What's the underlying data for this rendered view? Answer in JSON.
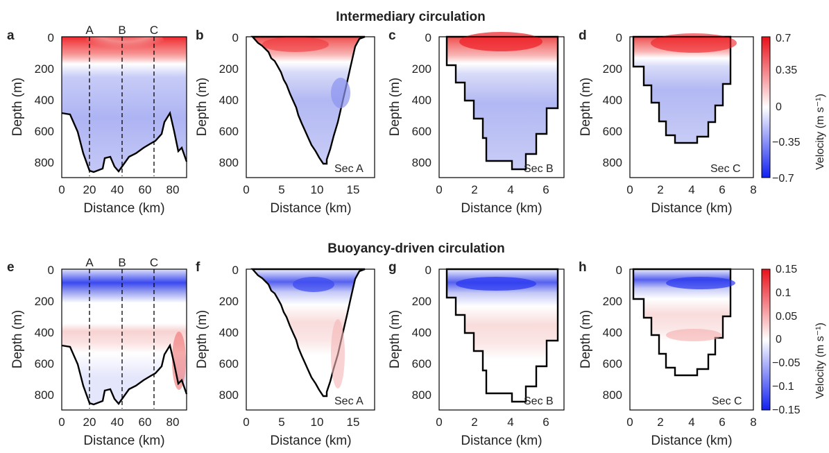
{
  "rows": [
    {
      "title": "Intermediary circulation",
      "colorbar": {
        "label": "Velocity (m s⁻¹)",
        "ticks": [
          "0.7",
          "0.35",
          "0",
          "−0.35",
          "−0.7"
        ]
      },
      "panels": [
        {
          "letter": "a",
          "sec_label": "",
          "section_lines": [
            "A",
            "B",
            "C"
          ]
        },
        {
          "letter": "b",
          "sec_label": "Sec A",
          "section_lines": []
        },
        {
          "letter": "c",
          "sec_label": "Sec B",
          "section_lines": []
        },
        {
          "letter": "d",
          "sec_label": "Sec C",
          "section_lines": []
        }
      ]
    },
    {
      "title": "Buoyancy-driven circulation",
      "colorbar": {
        "label": "Velocity (m s⁻¹)",
        "ticks": [
          "0.15",
          "0.1",
          "0.05",
          "0",
          "−0.05",
          "−0.1",
          "−0.15"
        ]
      },
      "panels": [
        {
          "letter": "e",
          "sec_label": "",
          "section_lines": [
            "A",
            "B",
            "C"
          ]
        },
        {
          "letter": "f",
          "sec_label": "Sec A",
          "section_lines": []
        },
        {
          "letter": "g",
          "sec_label": "Sec B",
          "section_lines": []
        },
        {
          "letter": "h",
          "sec_label": "Sec C",
          "section_lines": []
        }
      ]
    }
  ],
  "chart_data": [
    {
      "type": "heatmap",
      "panel": "a",
      "xlabel": "Distance (km)",
      "ylabel": "Depth (m)",
      "xlim": [
        0,
        90
      ],
      "ylim": [
        900,
        0
      ],
      "xticks": [
        "0",
        "20",
        "40",
        "60",
        "80"
      ],
      "yticks": [
        "0",
        "200",
        "400",
        "600",
        "800"
      ],
      "section_positions_km": {
        "A": 20,
        "B": 41,
        "C": 63
      },
      "bathymetry": {
        "distance_km": [
          0,
          5,
          10,
          15,
          18,
          20,
          25,
          30,
          35,
          40,
          45,
          50,
          55,
          60,
          63,
          65,
          70,
          75,
          80,
          85,
          88
        ],
        "depth_m": [
          490,
          500,
          560,
          680,
          790,
          840,
          860,
          850,
          800,
          850,
          830,
          790,
          760,
          700,
          680,
          650,
          610,
          490,
          640,
          730,
          790
        ]
      }
    },
    {
      "type": "heatmap",
      "panel": "b",
      "section": "A",
      "xlabel": "Distance (km)",
      "ylabel": "Depth (m)",
      "xlim": [
        0,
        18
      ],
      "ylim": [
        900,
        0
      ],
      "xticks": [
        "0",
        "5",
        "10",
        "15"
      ],
      "yticks": [
        "0",
        "200",
        "400",
        "600",
        "800"
      ],
      "bottom_profile": {
        "distance_km": [
          1,
          3,
          5,
          7,
          9,
          10.5,
          11,
          11,
          12,
          14,
          15,
          16.5
        ],
        "depth_m": [
          0,
          100,
          250,
          450,
          650,
          790,
          810,
          700,
          450,
          200,
          80,
          0
        ]
      }
    },
    {
      "type": "heatmap",
      "panel": "c",
      "section": "B",
      "xlabel": "Distance (km)",
      "ylabel": "Depth (m)",
      "xlim": [
        0,
        7
      ],
      "ylim": [
        900,
        0
      ],
      "xticks": [
        "0",
        "2",
        "4",
        "6"
      ],
      "yticks": [
        "0",
        "200",
        "400",
        "600",
        "800"
      ],
      "bottom_profile": {
        "distance_km": [
          0.6,
          0.6,
          1.0,
          1.0,
          1.5,
          1.5,
          2.0,
          2.0,
          2.5,
          2.5,
          2.7,
          2.7,
          3.9,
          3.9,
          4.5,
          4.5,
          5.0,
          5.0,
          5.5,
          5.5,
          6.0,
          6.0
        ],
        "depth_m": [
          0,
          180,
          180,
          290,
          290,
          410,
          410,
          520,
          520,
          640,
          640,
          790,
          790,
          840,
          840,
          750,
          750,
          620,
          620,
          460,
          460,
          0
        ]
      }
    },
    {
      "type": "heatmap",
      "panel": "d",
      "section": "C",
      "xlabel": "Distance (km)",
      "ylabel": "Depth (m)",
      "xlim": [
        0,
        8
      ],
      "ylim": [
        900,
        0
      ],
      "xticks": [
        "0",
        "2",
        "4",
        "6",
        "8"
      ],
      "yticks": [
        "0",
        "200",
        "400",
        "600",
        "800"
      ],
      "bottom_profile": {
        "distance_km": [
          0.6,
          0.6,
          1.3,
          1.3,
          1.8,
          1.8,
          2.3,
          2.3,
          2.8,
          2.8,
          3.4,
          3.4,
          4.8,
          4.8,
          5.5,
          5.5,
          6.0,
          6.0,
          6.5,
          6.5,
          7.0,
          7.0
        ],
        "depth_m": [
          0,
          190,
          190,
          310,
          310,
          420,
          420,
          540,
          540,
          630,
          630,
          680,
          680,
          640,
          640,
          550,
          550,
          440,
          440,
          300,
          300,
          0
        ]
      }
    },
    {
      "type": "heatmap",
      "panel": "e",
      "xlabel": "Distance (km)",
      "ylabel": "Depth (m)",
      "xlim": [
        0,
        90
      ],
      "ylim": [
        900,
        0
      ],
      "xticks": [
        "0",
        "20",
        "40",
        "60",
        "80"
      ],
      "yticks": [
        "0",
        "200",
        "400",
        "600",
        "800"
      ],
      "section_positions_km": {
        "A": 20,
        "B": 41,
        "C": 63
      }
    },
    {
      "type": "heatmap",
      "panel": "f",
      "section": "A",
      "xlabel": "Distance (km)",
      "ylabel": "Depth (m)",
      "xlim": [
        0,
        18
      ],
      "ylim": [
        900,
        0
      ],
      "xticks": [
        "0",
        "5",
        "10",
        "15"
      ],
      "yticks": [
        "0",
        "200",
        "400",
        "600",
        "800"
      ]
    },
    {
      "type": "heatmap",
      "panel": "g",
      "section": "B",
      "xlabel": "Distance (km)",
      "ylabel": "Depth (m)",
      "xlim": [
        0,
        7
      ],
      "ylim": [
        900,
        0
      ],
      "xticks": [
        "0",
        "2",
        "4",
        "6"
      ],
      "yticks": [
        "0",
        "200",
        "400",
        "600",
        "800"
      ]
    },
    {
      "type": "heatmap",
      "panel": "h",
      "section": "C",
      "xlabel": "Distance (km)",
      "ylabel": "Depth (m)",
      "xlim": [
        0,
        8
      ],
      "ylim": [
        900,
        0
      ],
      "xticks": [
        "0",
        "2",
        "4",
        "6",
        "8"
      ],
      "yticks": [
        "0",
        "200",
        "400",
        "600",
        "800"
      ]
    }
  ],
  "colors": {
    "positive": "#ee1d23",
    "negative": "#2130f0",
    "neutral": "#ffffff",
    "outline": "#000000"
  }
}
